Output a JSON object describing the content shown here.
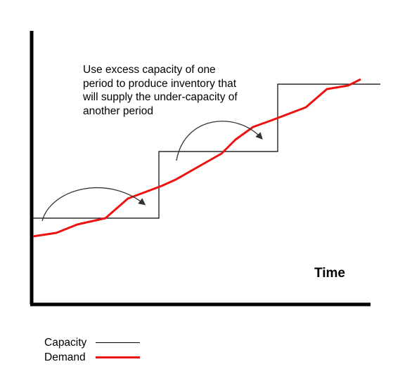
{
  "annotation": {
    "lines": [
      "Use excess capacity of one",
      "period to produce inventory that",
      "will supply the under-capacity of",
      "another period"
    ]
  },
  "axis": {
    "x_label": "Time"
  },
  "legend": {
    "items": [
      {
        "label": "Capacity",
        "color": "#000000"
      },
      {
        "label": "Demand",
        "color": "#ee1111"
      }
    ]
  },
  "colors": {
    "capacity": "#000000",
    "demand": "#ee1111",
    "arrow": "#333333"
  }
}
